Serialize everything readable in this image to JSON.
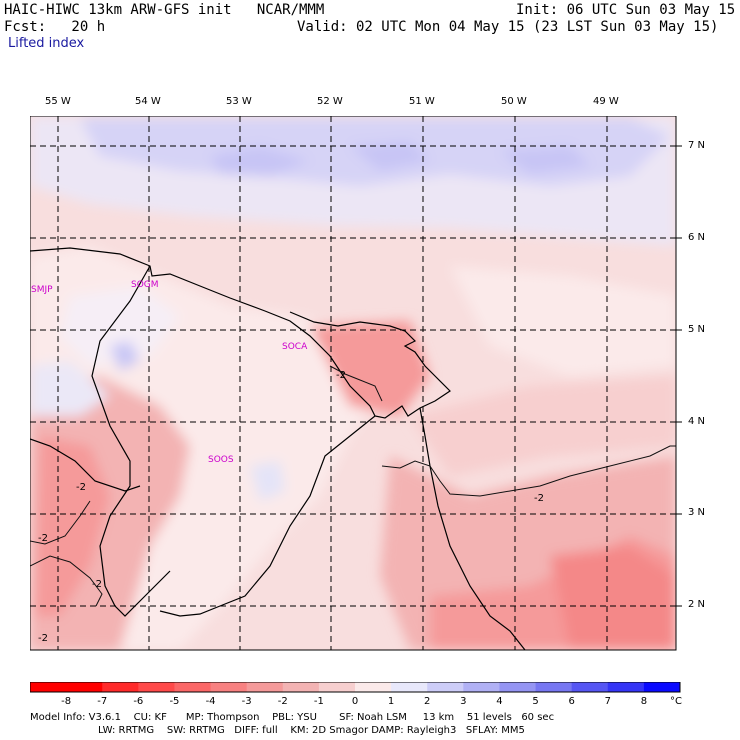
{
  "header": {
    "title_left": "HAIC-HIWC 13km ARW-GFS init   NCAR/MMM",
    "fcst_label": "Fcst:   20 h",
    "init": "Init: 06 UTC Sun 03 May 15",
    "valid": "Valid: 02 UTC Mon 04 May 15 (23 LST Sun 03 May 15)",
    "field": "Lifted index"
  },
  "lon_labels": [
    "55 W",
    "54 W",
    "53 W",
    "52 W",
    "51 W",
    "50 W",
    "49 W"
  ],
  "lat_labels": [
    "7 N",
    "6 N",
    "5 N",
    "4 N",
    "3 N",
    "2 N"
  ],
  "stations": [
    "SMJP",
    "SOGM",
    "SOCA",
    "SOOS"
  ],
  "contour_labels": [
    "-2",
    "-2",
    "-2",
    "-2",
    "-2",
    "-2"
  ],
  "colorbar": {
    "ticks": [
      "-8",
      "-7",
      "-6",
      "-5",
      "-4",
      "-3",
      "-2",
      "-1",
      "0",
      "1",
      "2",
      "3",
      "4",
      "5",
      "6",
      "7",
      "8"
    ],
    "unit": "°C",
    "colors": [
      "#ff0000",
      "#ff2a2a",
      "#ff4a4a",
      "#fb6767",
      "#f88181",
      "#f59a9a",
      "#f3b3b3",
      "#f7cfcf",
      "#fbeaea",
      "#e8e8fb",
      "#cdcdf8",
      "#b1b1f5",
      "#9595f3",
      "#7777f2",
      "#5656f3",
      "#3535f6",
      "#0a0aff"
    ]
  },
  "footer": {
    "line1": "Model Info: V3.6.1    CU: KF      MP: Thompson    PBL: YSU       SF: Noah LSM     13 km    51 levels   60 sec",
    "line2": "LW: RRTMG    SW: RRTMG   DIFF: full    KM: 2D Smagor DAMP: Rayleigh3   SFLAY: MM5"
  }
}
